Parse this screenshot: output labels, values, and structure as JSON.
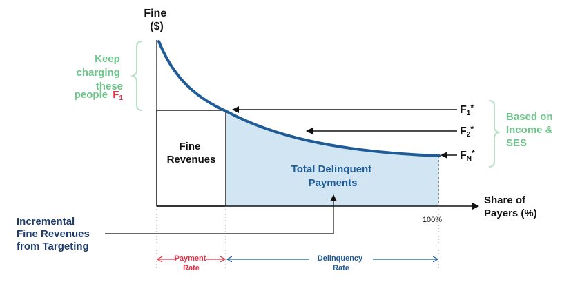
{
  "colors": {
    "curve": "#1f5b96",
    "fill": "#d2e5f2",
    "green": "#6ec48a",
    "red": "#e0344a",
    "navy": "#1f3d6b",
    "axis": "#111111",
    "grey": "#bbbbbb"
  },
  "axes": {
    "y_label_line1": "Fine",
    "y_label_line2": "($)",
    "x_label_line1": "Share of",
    "x_label_line2": "Payers (%)",
    "x_tick_100": "100%"
  },
  "left_note": {
    "line1": "Keep",
    "line2": "charging",
    "line3": "these",
    "line4_text": "people",
    "line4_symbol": "F",
    "line4_sub": "1"
  },
  "regions": {
    "fine_revenues_line1": "Fine",
    "fine_revenues_line2": "Revenues",
    "delinquent_line1": "Total Delinquent",
    "delinquent_line2": "Payments"
  },
  "fine_levels": [
    {
      "symbol": "F",
      "sub": "1",
      "suffix": "*"
    },
    {
      "symbol": "F",
      "sub": "2",
      "suffix": "*"
    },
    {
      "symbol": "F",
      "sub": "N",
      "suffix": "*"
    }
  ],
  "right_note": {
    "line1": "Based on",
    "line2": "Income &",
    "line3": "SES"
  },
  "incremental": {
    "line1": "Incremental",
    "line2": "Fine Revenues",
    "line3": "from Targeting"
  },
  "bottom": {
    "payment_line1": "Payment",
    "payment_line2": "Rate",
    "delinquency_line1": "Delinquency",
    "delinquency_line2": "Rate"
  }
}
